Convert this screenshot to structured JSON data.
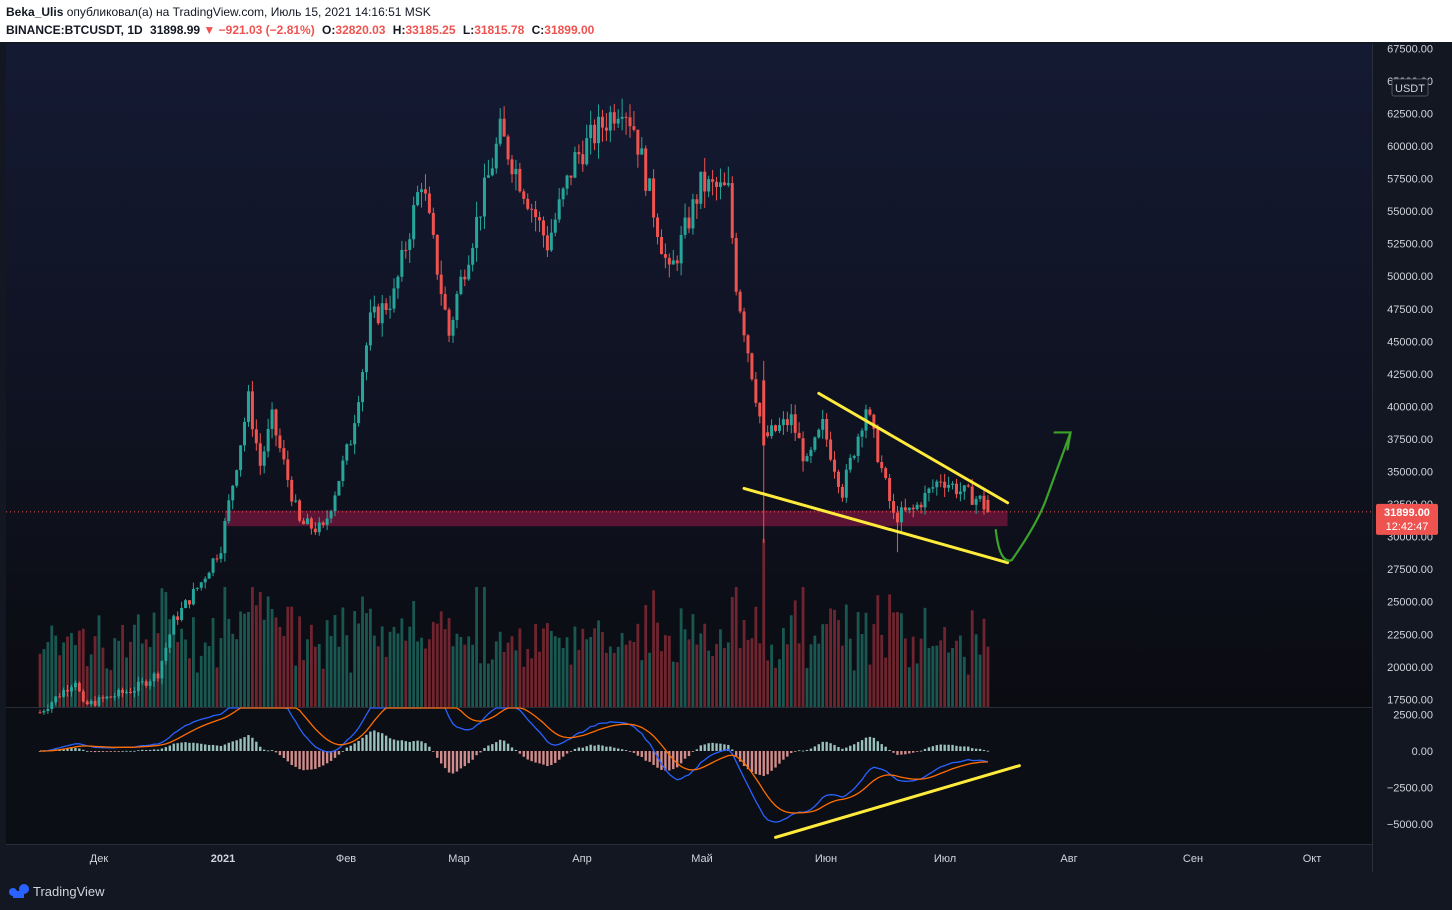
{
  "header": {
    "author": "Beka_Ulis",
    "publish_text": "опубликовал(а) на TradingView.com, Июль 15, 2021 14:16:51 MSK",
    "symbol": "BINANCE:BTCUSDT, 1D",
    "last_price": "31898.99",
    "change": "▼ −921.03 (−2.81%)",
    "o_label": "O:",
    "o_value": "32820.03",
    "h_label": "H:",
    "h_value": "33185.25",
    "l_label": "L:",
    "l_value": "31815.78",
    "c_label": "C:",
    "c_value": "31899.00"
  },
  "footer": {
    "brand": "TradingView"
  },
  "price_axis": {
    "currency": "USDT",
    "current_price_label": "31899.00",
    "countdown_label": "12:42:47"
  },
  "colors": {
    "up": "#26a69a",
    "down": "#ef5350",
    "trendline": "#ffeb3b",
    "arrow": "#3ca32a",
    "support_zone": "#6b1538",
    "macd": "#2962ff",
    "signal": "#ff6d00",
    "background": "#131722"
  },
  "chart_data": {
    "type": "candlestick",
    "symbol": "BINANCE:BTCUSDT",
    "interval": "1D",
    "price_ticks": [
      "67500.00",
      "65000.00",
      "62500.00",
      "60000.00",
      "57500.00",
      "55000.00",
      "52500.00",
      "50000.00",
      "47500.00",
      "45000.00",
      "42500.00",
      "40000.00",
      "37500.00",
      "35000.00",
      "32500.00",
      "30000.00",
      "27500.00",
      "25000.00",
      "22500.00",
      "20000.00",
      "17500.00"
    ],
    "macd_ticks": [
      "2500.00",
      "0.00",
      "−2500.00",
      "−5000.00"
    ],
    "time_ticks": [
      "Дек",
      "2021",
      "Фев",
      "Мар",
      "Апр",
      "Май",
      "Июн",
      "Июл",
      "Авг",
      "Сен",
      "Окт"
    ],
    "price_anchors": [
      [
        "2020-11-16",
        16500
      ],
      [
        "2020-11-25",
        19000
      ],
      [
        "2020-11-27",
        17000
      ],
      [
        "2020-12-10",
        18300
      ],
      [
        "2020-12-16",
        19500
      ],
      [
        "2020-12-20",
        23500
      ],
      [
        "2020-12-27",
        26500
      ],
      [
        "2021-01-01",
        29300
      ],
      [
        "2021-01-08",
        40500
      ],
      [
        "2021-01-11",
        35500
      ],
      [
        "2021-01-14",
        39000
      ],
      [
        "2021-01-21",
        31000
      ],
      [
        "2021-01-27",
        30500
      ],
      [
        "2021-02-03",
        37500
      ],
      [
        "2021-02-08",
        46500
      ],
      [
        "2021-02-14",
        48500
      ],
      [
        "2021-02-21",
        57500
      ],
      [
        "2021-02-28",
        45500
      ],
      [
        "2021-03-02",
        48500
      ],
      [
        "2021-03-13",
        61000
      ],
      [
        "2021-03-25",
        52500
      ],
      [
        "2021-04-01",
        59000
      ],
      [
        "2021-04-13",
        63500
      ],
      [
        "2021-04-16",
        61500
      ],
      [
        "2021-04-25",
        50000
      ],
      [
        "2021-05-03",
        57000
      ],
      [
        "2021-05-10",
        56500
      ],
      [
        "2021-05-12",
        49500
      ],
      [
        "2021-05-19",
        37500
      ],
      [
        "2021-05-26",
        39000
      ],
      [
        "2021-05-30",
        35500
      ],
      [
        "2021-06-03",
        38500
      ],
      [
        "2021-06-08",
        33500
      ],
      [
        "2021-06-14",
        40000
      ],
      [
        "2021-06-21",
        31500
      ],
      [
        "2021-06-26",
        32000
      ],
      [
        "2021-07-03",
        34500
      ],
      [
        "2021-07-08",
        33500
      ],
      [
        "2021-07-13",
        32800
      ],
      [
        "2021-07-15",
        31899
      ]
    ],
    "last_candle": {
      "date": "2021-07-15",
      "open": 32820.03,
      "high": 33185.25,
      "low": 31815.78,
      "close": 31899.0,
      "change": -921.03,
      "change_pct": -2.81
    },
    "support_zone": {
      "from": 30800,
      "to": 32000,
      "start": "2021-01-02",
      "end": "2021-07-20"
    },
    "annotations": {
      "falling_wedge_upper": [
        [
          "2021-06-02",
          41000
        ],
        [
          "2021-07-20",
          32600
        ]
      ],
      "falling_wedge_lower": [
        [
          "2021-05-14",
          33700
        ],
        [
          "2021-07-20",
          28000
        ]
      ],
      "macd_divergence_line": [
        [
          "2021-05-22",
          -5900
        ],
        [
          "2021-07-23",
          -1000
        ]
      ],
      "projected_arrow": [
        [
          "2021-07-17",
          30500
        ],
        [
          "2021-07-19",
          28800
        ],
        [
          "2021-07-27",
          31500
        ],
        [
          "2021-08-05",
          38000
        ]
      ]
    },
    "indicators": [
      "Volume",
      "MACD"
    ]
  }
}
